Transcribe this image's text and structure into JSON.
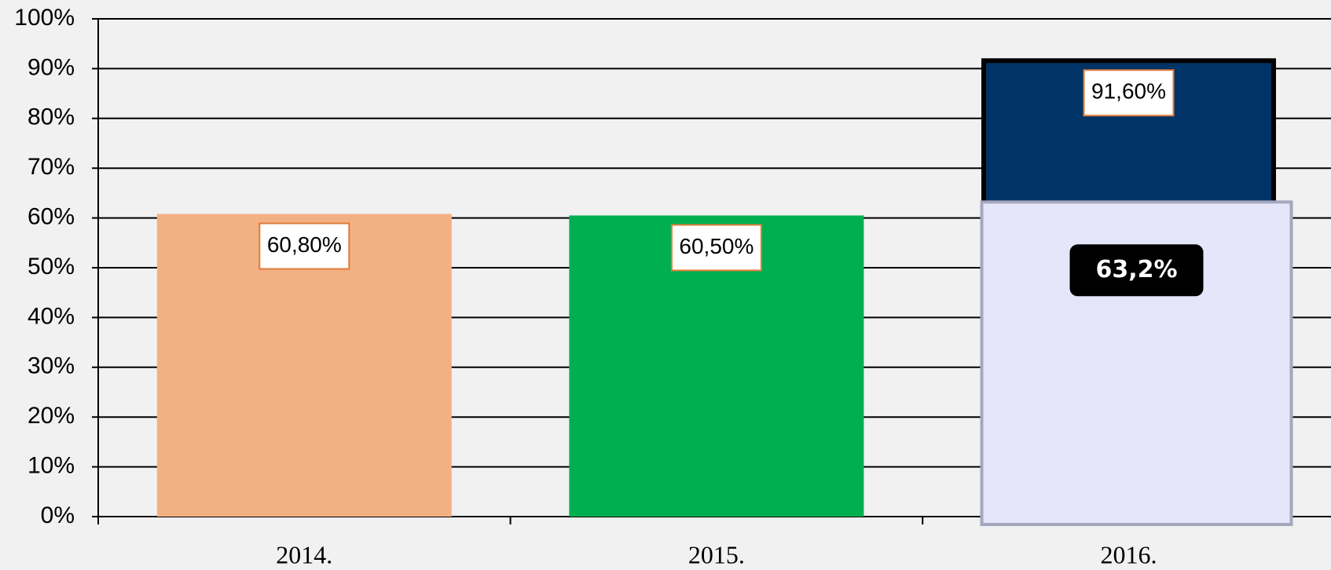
{
  "chart_data": {
    "type": "bar",
    "categories": [
      "2014.",
      "2015.",
      "2016."
    ],
    "series": [
      {
        "colors": [
          "#f2b183",
          "#00b050",
          "#003366"
        ],
        "values": [
          60.8,
          60.5,
          91.6
        ],
        "value_labels": [
          "60,80%",
          "60,50%",
          "91,60%"
        ]
      },
      {
        "color": "#e6e6fa",
        "values": [
          null,
          null,
          63.2
        ],
        "value_labels": [
          null,
          null,
          "63,2%"
        ]
      }
    ],
    "ylim": [
      0,
      100
    ],
    "yticks": [
      {
        "value": 0,
        "label": "0%"
      },
      {
        "value": 10,
        "label": "10%"
      },
      {
        "value": 20,
        "label": "20%"
      },
      {
        "value": 30,
        "label": "30%"
      },
      {
        "value": 40,
        "label": "40%"
      },
      {
        "value": 50,
        "label": "50%"
      },
      {
        "value": 60,
        "label": "60%"
      },
      {
        "value": 70,
        "label": "70%"
      },
      {
        "value": 80,
        "label": "80%"
      },
      {
        "value": 90,
        "label": "90%"
      },
      {
        "value": 100,
        "label": "100%"
      }
    ],
    "grid": true
  }
}
